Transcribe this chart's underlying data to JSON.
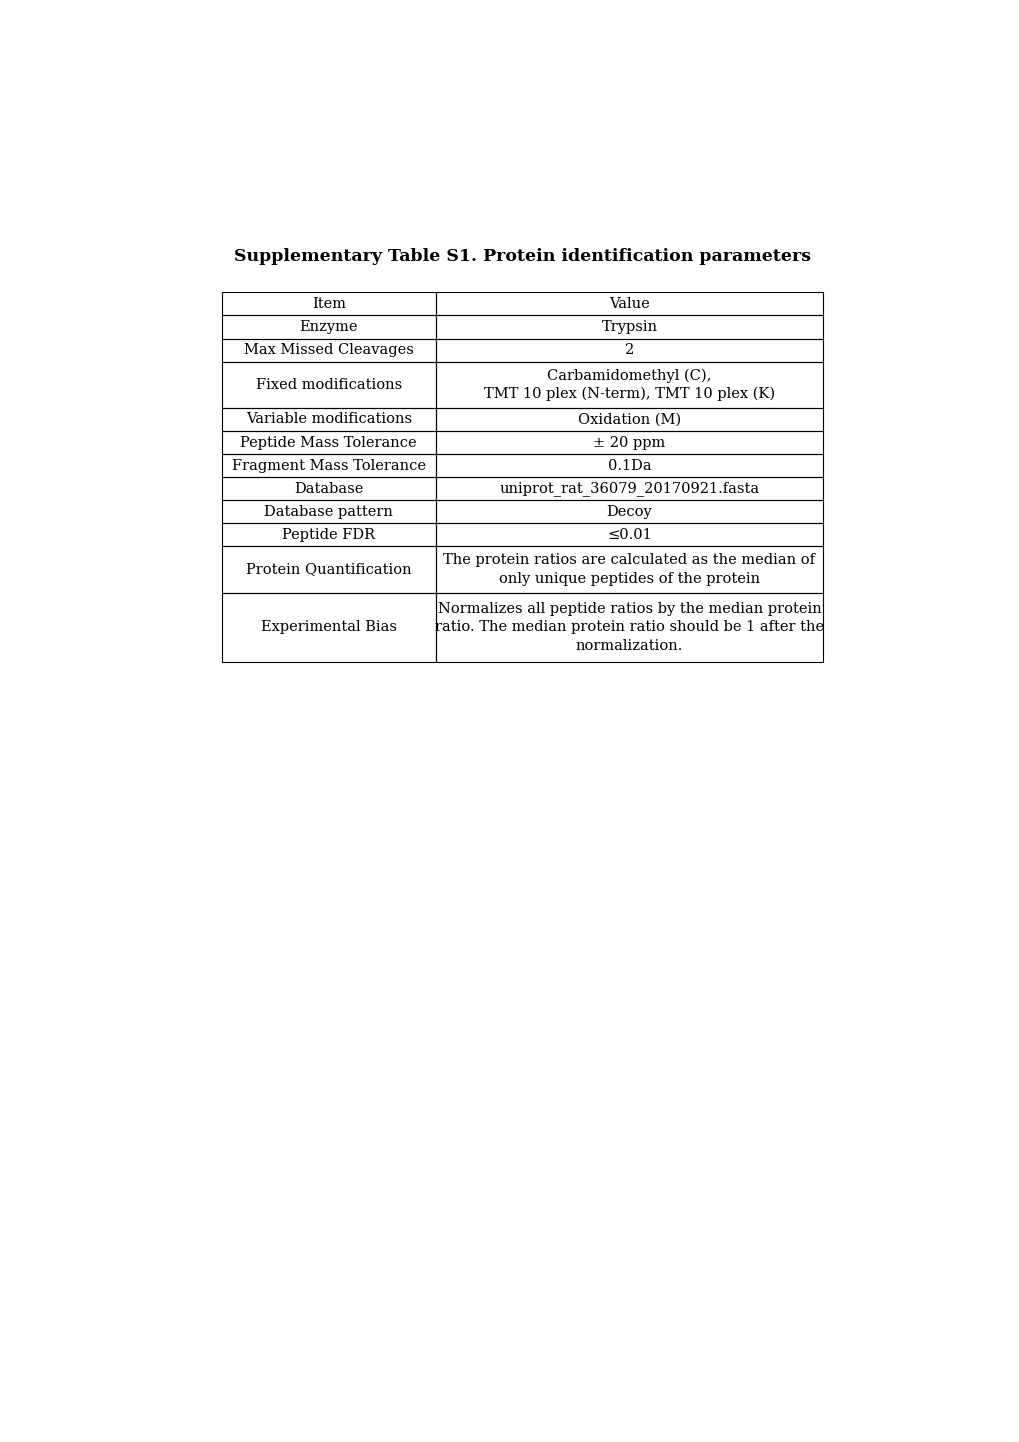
{
  "title": "Supplementary Table S1. Protein identification parameters",
  "title_fontsize": 12.5,
  "font_family": "DejaVu Serif",
  "bg_color": "#ffffff",
  "text_color": "#000000",
  "fig_width": 10.2,
  "fig_height": 14.42,
  "dpi": 100,
  "rows": [
    {
      "item": "Item",
      "value": "Value",
      "n_lines": 1
    },
    {
      "item": "Enzyme",
      "value": "Trypsin",
      "n_lines": 1
    },
    {
      "item": "Max Missed Cleavages",
      "value": "2",
      "n_lines": 1
    },
    {
      "item": "Fixed modifications",
      "value": "Carbamidomethyl (C),\nTMT 10 plex (N-term), TMT 10 plex (K)",
      "n_lines": 2
    },
    {
      "item": "Variable modifications",
      "value": "Oxidation (M)",
      "n_lines": 1
    },
    {
      "item": "Peptide Mass Tolerance",
      "value": "± 20 ppm",
      "n_lines": 1
    },
    {
      "item": "Fragment Mass Tolerance",
      "value": "0.1Da",
      "n_lines": 1
    },
    {
      "item": "Database",
      "value": "uniprot_rat_36079_20170921.fasta",
      "n_lines": 1
    },
    {
      "item": "Database pattern",
      "value": "Decoy",
      "n_lines": 1
    },
    {
      "item": "Peptide FDR",
      "value": "≤0.01",
      "n_lines": 1
    },
    {
      "item": "Protein Quantification",
      "value": "The protein ratios are calculated as the median of\nonly unique peptides of the protein",
      "n_lines": 2
    },
    {
      "item": "Experimental Bias",
      "value": "Normalizes all peptide ratios by the median protein\nratio. The median protein ratio should be 1 after the\nnormalization.",
      "n_lines": 3
    }
  ]
}
